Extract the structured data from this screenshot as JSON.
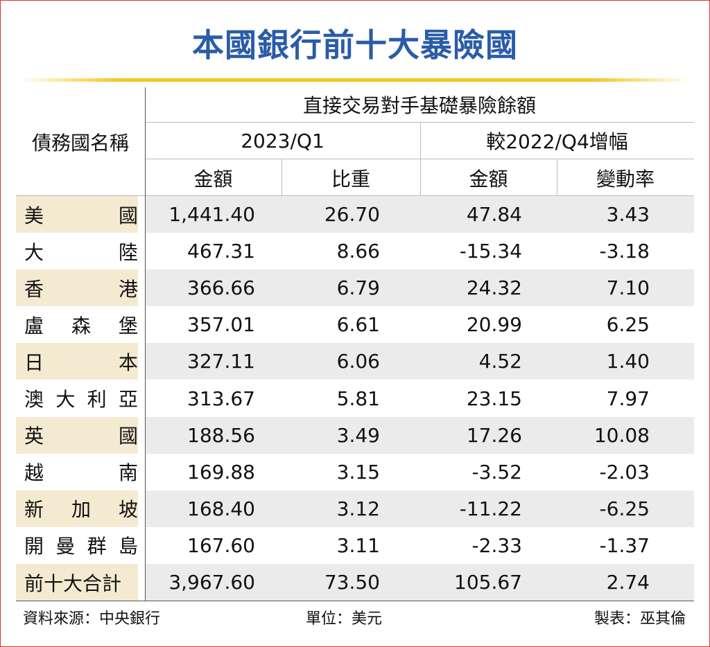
{
  "header": {
    "title": "本國銀行前十大暴險國"
  },
  "table": {
    "columns": {
      "name": "債務國名稱",
      "group": "直接交易對手基礎暴險餘額",
      "period": "2023/Q1",
      "change": "較2022/Q4增幅",
      "sub": [
        "金額",
        "比重",
        "金額",
        "變動率"
      ]
    },
    "rows": [
      [
        "美國",
        "1,441.40",
        "26.70",
        "47.84",
        "3.43"
      ],
      [
        "大陸",
        "467.31",
        "8.66",
        "-15.34",
        "-3.18"
      ],
      [
        "香港",
        "366.66",
        "6.79",
        "24.32",
        "7.10"
      ],
      [
        "盧森堡",
        "357.01",
        "6.61",
        "20.99",
        "6.25"
      ],
      [
        "日本",
        "327.11",
        "6.06",
        "4.52",
        "1.40"
      ],
      [
        "澳大利亞",
        "313.67",
        "5.81",
        "23.15",
        "7.97"
      ],
      [
        "英國",
        "188.56",
        "3.49",
        "17.26",
        "10.08"
      ],
      [
        "越南",
        "169.88",
        "3.15",
        "-3.52",
        "-2.03"
      ],
      [
        "新加坡",
        "168.40",
        "3.12",
        "-11.22",
        "-6.25"
      ],
      [
        "開曼群島",
        "167.60",
        "3.11",
        "-2.33",
        "-1.37"
      ],
      [
        "前十大合計",
        "3,967.60",
        "73.50",
        "105.67",
        "2.74"
      ]
    ]
  },
  "footer": {
    "source": "資料來源：中央銀行",
    "unit": "單位：美元",
    "author": "製表：巫其倫"
  }
}
